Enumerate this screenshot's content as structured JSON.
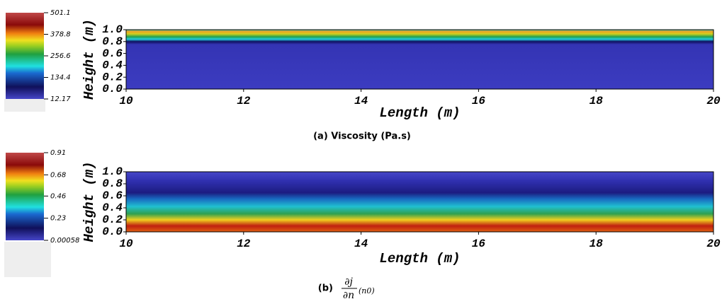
{
  "chart_data": [
    {
      "type": "heatmap",
      "caption": "(a) Viscosity (Pa.s)",
      "xlabel": "Length (m)",
      "ylabel": "Height (m)",
      "xlim": [
        10,
        20
      ],
      "xticks": [
        10,
        12,
        14,
        16,
        18,
        20
      ],
      "ylim": [
        0,
        1
      ],
      "yticks": [
        {
          "value": 0,
          "label": "0.0"
        },
        {
          "value": 0.2,
          "label": "0.2"
        },
        {
          "value": 0.4,
          "label": "0.4"
        },
        {
          "value": 0.6,
          "label": "0.6"
        },
        {
          "value": 0.8,
          "label": "0.8"
        },
        {
          "value": 1,
          "label": "1.0"
        }
      ],
      "clim": [
        12.17,
        501.1
      ],
      "cticks": [
        12.17,
        134.4,
        256.6,
        378.8,
        501.1
      ]
    },
    {
      "type": "heatmap",
      "caption": "(b)",
      "caption_numerator": "∂j",
      "caption_denominator": "∂n",
      "caption_subscript": "(n0)",
      "xlabel": "Length (m)",
      "ylabel": "Height (m)",
      "xlim": [
        10,
        20
      ],
      "xticks": [
        10,
        12,
        14,
        16,
        18,
        20
      ],
      "ylim": [
        0,
        1
      ],
      "yticks": [
        {
          "value": 0,
          "label": "0.0"
        },
        {
          "value": 0.2,
          "label": "0.2"
        },
        {
          "value": 0.4,
          "label": "0.4"
        },
        {
          "value": 0.6,
          "label": "0.6"
        },
        {
          "value": 0.8,
          "label": "0.8"
        },
        {
          "value": 1,
          "label": "1.0"
        }
      ],
      "clim": [
        0.00058,
        0.91
      ],
      "cticks": [
        0.00058,
        0.23,
        0.46,
        0.68,
        0.91
      ]
    }
  ]
}
